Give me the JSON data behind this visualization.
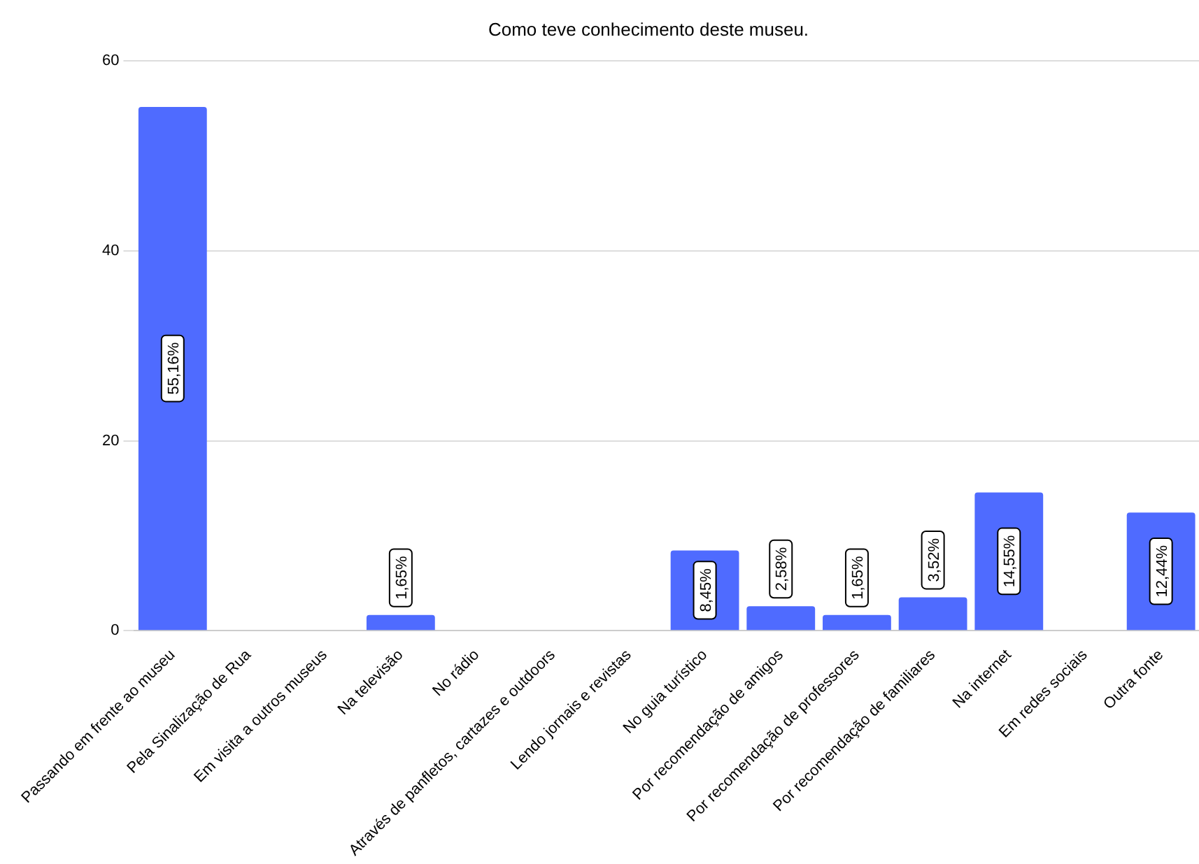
{
  "chart_data": {
    "type": "bar",
    "title": "Como teve conhecimento deste museu.",
    "categories": [
      "Passando em frente ao museu",
      "Pela Sinalização de Rua",
      "Em visita a outros museus",
      "Na televisão",
      "No rádio",
      "Através de panfletos, cartazes e outdoors",
      "Lendo jornais e revistas",
      "No guia turístico",
      "Por recomendação de amigos",
      "Por recomendação de professores",
      "Por recomendação de familiares",
      "Na internet",
      "Em redes sociais",
      "Outra fonte"
    ],
    "values": [
      55.16,
      0,
      0,
      1.65,
      0,
      0,
      0,
      8.45,
      2.58,
      1.65,
      3.52,
      14.55,
      0,
      12.44
    ],
    "value_labels": [
      "55,16%",
      null,
      null,
      "1,65%",
      null,
      null,
      null,
      "8,45%",
      "2,58%",
      "1,65%",
      "3,52%",
      "14,55%",
      null,
      "12,44%"
    ],
    "color": "#4f6bff",
    "ylim": [
      0,
      60
    ],
    "yticks": [
      0,
      20,
      40,
      60
    ],
    "grid": "y",
    "legend": false
  }
}
